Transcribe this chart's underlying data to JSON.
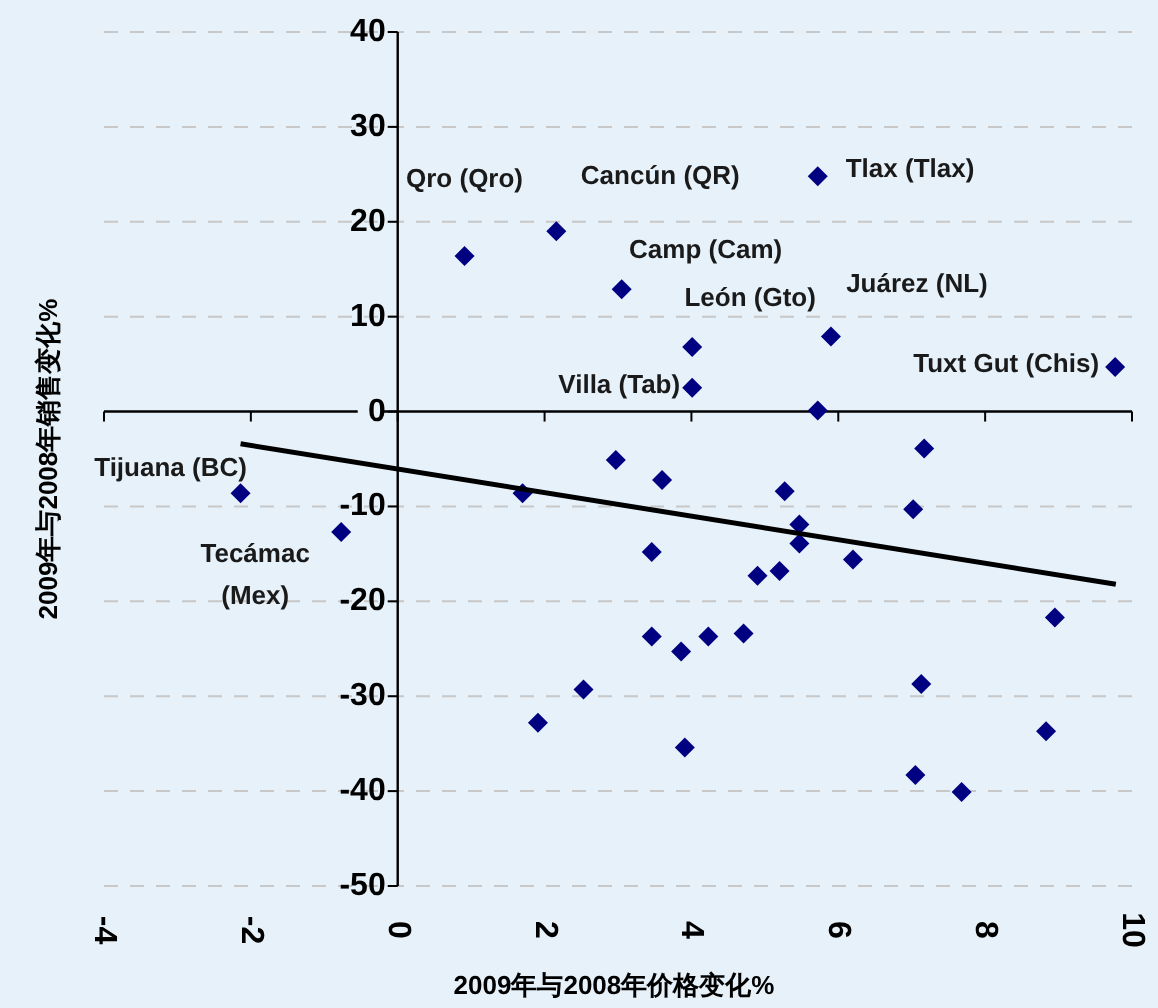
{
  "chart_data": {
    "type": "scatter",
    "xlabel": "2009年与2008年价格变化%",
    "ylabel": "2009年与2008年销售变化%",
    "xlim": [
      -4,
      10
    ],
    "ylim": [
      -50,
      40
    ],
    "xticks": [
      -4,
      -2,
      0,
      2,
      4,
      6,
      8,
      10
    ],
    "yticks": [
      -50,
      -40,
      -30,
      -20,
      -10,
      0,
      10,
      20,
      30,
      40
    ],
    "grid": "y",
    "series": [
      {
        "color": "#000080",
        "marker": "diamond",
        "x": [
          0.91,
          2.16,
          5.72,
          3.05,
          4.01,
          4.01,
          5.9,
          9.77,
          5.72,
          -2.14,
          -0.77,
          1.7,
          1.91,
          2.53,
          2.97,
          3.6,
          3.46,
          3.46,
          3.86,
          4.23,
          4.71,
          3.91,
          4.9,
          5.2,
          5.27,
          5.47,
          5.47,
          6.2,
          7.17,
          7.02,
          7.13,
          7.05,
          7.68,
          8.83,
          8.95
        ],
        "values": [
          16.4,
          19.0,
          24.8,
          12.9,
          6.8,
          2.5,
          7.9,
          4.7,
          0.1,
          -8.6,
          -12.7,
          -8.6,
          -32.8,
          -29.3,
          -5.1,
          -7.2,
          -14.8,
          -23.7,
          -25.3,
          -23.7,
          -23.4,
          -35.4,
          -17.3,
          -16.8,
          -8.4,
          -11.9,
          -13.9,
          -15.6,
          -3.9,
          -10.3,
          -28.7,
          -38.3,
          -40.1,
          -33.7,
          -21.7
        ]
      },
      {
        "type": "line",
        "color": "#000000",
        "marker": "none",
        "x": [
          -2.14,
          9.78
        ],
        "values": [
          -3.4,
          -18.2
        ]
      }
    ],
    "annotations": [
      {
        "text": "Qro (Qro)",
        "x": 0.91,
        "y": 16.4
      },
      {
        "text": "Cancún (QR)",
        "x": 2.16,
        "y": 19.0
      },
      {
        "text": "Tlax (Tlax)",
        "x": 5.72,
        "y": 24.8
      },
      {
        "text": "Camp (Cam)",
        "x": 3.05,
        "y": 12.9
      },
      {
        "text": "León (Gto)",
        "x": 4.01,
        "y": 6.8
      },
      {
        "text": "Villa (Tab)",
        "x": 4.01,
        "y": 2.5
      },
      {
        "text": "Juárez (NL)",
        "x": 5.9,
        "y": 7.9
      },
      {
        "text": "Tuxt Gut (Chis)",
        "x": 9.77,
        "y": 4.7
      },
      {
        "text": "Tijuana (BC)",
        "x": -2.14,
        "y": -8.6
      },
      {
        "text": "Tecámac (Mex)",
        "x": -0.77,
        "y": -12.7
      }
    ]
  }
}
